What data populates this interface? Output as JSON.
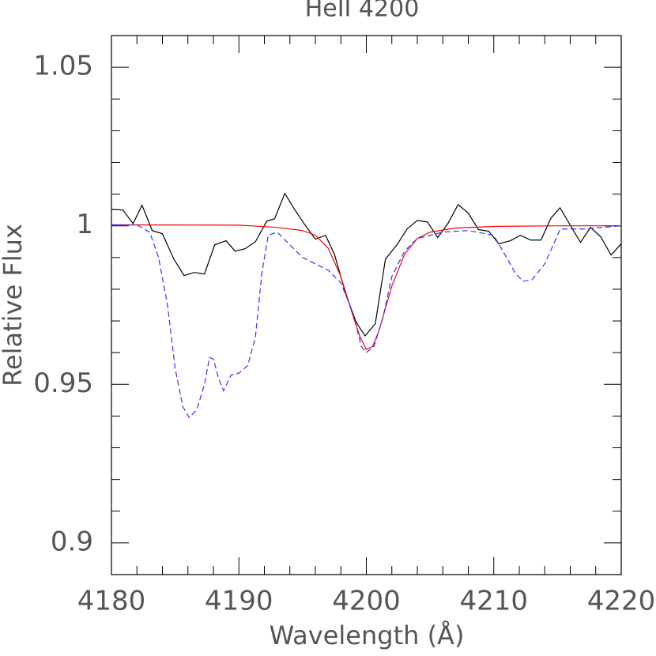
{
  "chart_data": {
    "type": "line",
    "title": "HeII 4200",
    "xlabel": "Wavelength (Å)",
    "ylabel": "Relative Flux",
    "xlim": [
      4180,
      4220
    ],
    "ylim": [
      0.89,
      1.06
    ],
    "xticks": [
      4180,
      4190,
      4200,
      4210,
      4220
    ],
    "xminorticks": [
      4182,
      4184,
      4186,
      4188,
      4192,
      4194,
      4196,
      4198,
      4202,
      4204,
      4206,
      4208,
      4212,
      4214,
      4216,
      4218
    ],
    "yticks": [
      0.9,
      0.95,
      1,
      1.05
    ],
    "yminorticks": [
      0.89,
      0.91,
      0.92,
      0.93,
      0.94,
      0.96,
      0.97,
      0.98,
      0.99,
      1.01,
      1.02,
      1.03,
      1.04,
      1.06
    ],
    "series": [
      {
        "color": "#000000",
        "dash": false,
        "x": [
          4180,
          4180.9,
          4181.7,
          4182.4,
          4183.2,
          4184.0,
          4184.9,
          4185.7,
          4186.5,
          4187.3,
          4188.1,
          4189.0,
          4189.7,
          4190.5,
          4191.3,
          4192.2,
          4192.8,
          4193.6,
          4194.4,
          4195.2,
          4196.0,
          4196.8,
          4197.5,
          4198.4,
          4199.2,
          4199.9,
          4200.7,
          4201.5,
          4202.4,
          4203.2,
          4204.0,
          4204.8,
          4205.6,
          4206.4,
          4207.2,
          4208.0,
          4208.8,
          4209.6,
          4210.4,
          4211.3,
          4212.1,
          4212.9,
          4213.7,
          4214.5,
          4215.2,
          4216.0,
          4216.8,
          4217.6,
          4218.4,
          4219.2,
          4220
        ],
        "values": [
          1.0052,
          1.005,
          1.0007,
          1.0065,
          0.9985,
          0.9975,
          0.9895,
          0.9843,
          0.9853,
          0.9848,
          0.994,
          0.9953,
          0.992,
          0.9928,
          0.995,
          1.0015,
          1.0022,
          1.0102,
          1.005,
          1.0002,
          0.9958,
          0.997,
          0.991,
          0.9783,
          0.9696,
          0.9653,
          0.9691,
          0.9895,
          0.994,
          0.999,
          1.0017,
          1.0012,
          0.9963,
          1.0007,
          1.0067,
          1.004,
          0.9988,
          0.9983,
          0.9943,
          0.9953,
          0.997,
          0.9955,
          0.9955,
          1.0025,
          1.0057,
          1.0002,
          0.9948,
          0.9995,
          0.9965,
          0.9908,
          0.9943
        ]
      },
      {
        "color": "#ff0000",
        "dash": false,
        "x": [
          4180,
          4190,
          4193,
          4195,
          4196,
          4197,
          4198,
          4199,
          4199.5,
          4200,
          4200.5,
          4201,
          4202,
          4203,
          4204,
          4205,
          4207,
          4210,
          4215,
          4220
        ],
        "values": [
          1.0003,
          1.0002,
          0.9995,
          0.9985,
          0.997,
          0.993,
          0.984,
          0.971,
          0.965,
          0.961,
          0.962,
          0.967,
          0.981,
          0.991,
          0.996,
          0.998,
          0.9993,
          0.9998,
          1.0,
          1.0
        ]
      },
      {
        "color": "#3333ff",
        "dash": true,
        "x": [
          4180,
          4182,
          4183,
          4183.7,
          4184.4,
          4185,
          4185.6,
          4186.1,
          4186.7,
          4187.3,
          4187.7,
          4188,
          4188.4,
          4188.8,
          4189.4,
          4190,
          4190.7,
          4191.3,
          4191.8,
          4192.3,
          4193,
          4194,
          4195,
          4196,
          4197,
          4198,
          4199,
          4199.6,
          4200,
          4200.6,
          4201.3,
          4202,
          4203,
          4204,
          4205,
          4206,
          4208,
          4210,
          4211,
          4211.7,
          4212.3,
          4213,
          4214,
          4215,
          4215.2,
          4217,
          4220
        ],
        "values": [
          1.0003,
          1.0003,
          0.998,
          0.99,
          0.975,
          0.955,
          0.943,
          0.9395,
          0.942,
          0.95,
          0.9585,
          0.958,
          0.952,
          0.948,
          0.953,
          0.9535,
          0.956,
          0.965,
          0.985,
          0.997,
          0.998,
          0.994,
          0.99,
          0.988,
          0.986,
          0.982,
          0.972,
          0.962,
          0.96,
          0.962,
          0.971,
          0.984,
          0.992,
          0.996,
          0.997,
          0.998,
          0.9985,
          0.997,
          0.99,
          0.985,
          0.9825,
          0.983,
          0.988,
          0.997,
          0.999,
          0.999,
          1.0
        ]
      }
    ]
  }
}
